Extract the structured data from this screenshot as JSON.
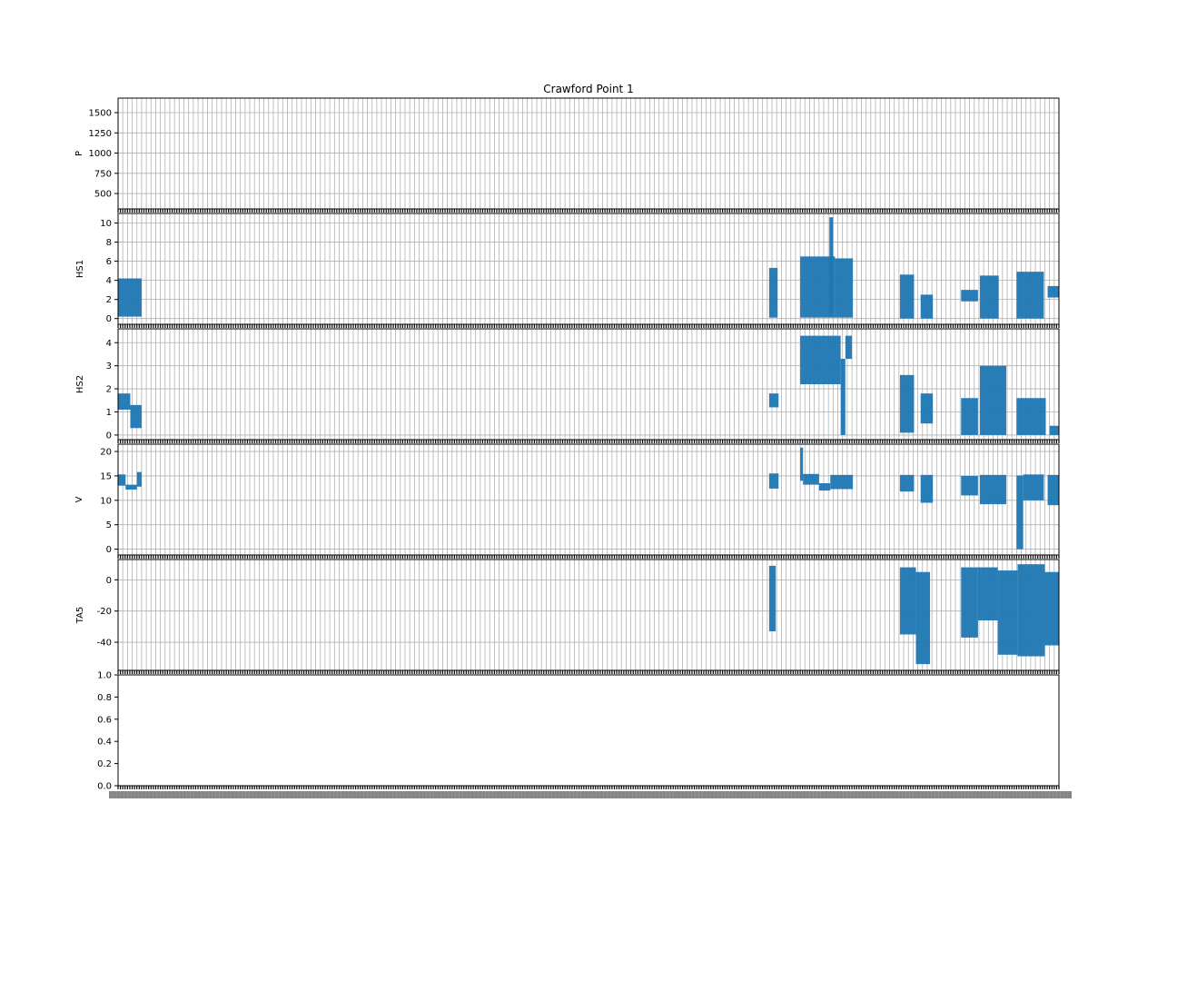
{
  "figure": {
    "title": "Crawford Point 1"
  },
  "chart_data": [
    {
      "type": "line",
      "ylabel": "P",
      "yticks": [
        500,
        750,
        1000,
        1250,
        1500
      ],
      "ylim": [
        310,
        1680
      ],
      "grid": true,
      "series": [
        {
          "color": "#1f77b4",
          "segments": []
        }
      ]
    },
    {
      "type": "line",
      "ylabel": "HS1",
      "yticks": [
        0,
        2,
        4,
        6,
        8,
        10
      ],
      "ylim": [
        -0.6,
        11.0
      ],
      "grid": true,
      "series": [
        {
          "color": "#1f77b4",
          "segments": [
            {
              "x": [
                0.0,
                0.025
              ],
              "low": 0.2,
              "high": 4.2
            },
            {
              "x": [
                0.692,
                0.701
              ],
              "low": 0.1,
              "high": 5.3
            },
            {
              "x": [
                0.725,
                0.762
              ],
              "low": 0.1,
              "high": 6.5
            },
            {
              "x": [
                0.756,
                0.76
              ],
              "low": 0.2,
              "high": 10.6
            },
            {
              "x": [
                0.762,
                0.781
              ],
              "low": 0.1,
              "high": 6.3
            },
            {
              "x": [
                0.831,
                0.846
              ],
              "low": 0.0,
              "high": 4.6
            },
            {
              "x": [
                0.853,
                0.866
              ],
              "low": 0.0,
              "high": 2.5
            },
            {
              "x": [
                0.896,
                0.914
              ],
              "low": 1.8,
              "high": 3.0
            },
            {
              "x": [
                0.916,
                0.936
              ],
              "low": 0.0,
              "high": 4.5
            },
            {
              "x": [
                0.955,
                0.984
              ],
              "low": 0.0,
              "high": 4.9
            },
            {
              "x": [
                0.988,
                1.0
              ],
              "low": 2.2,
              "high": 3.4
            }
          ]
        }
      ]
    },
    {
      "type": "line",
      "ylabel": "HS2",
      "yticks": [
        0,
        1,
        2,
        3,
        4
      ],
      "ylim": [
        -0.2,
        4.6
      ],
      "grid": true,
      "series": [
        {
          "color": "#1f77b4",
          "segments": [
            {
              "x": [
                0.0,
                0.013
              ],
              "low": 1.1,
              "high": 1.8
            },
            {
              "x": [
                0.013,
                0.025
              ],
              "low": 0.3,
              "high": 1.3
            },
            {
              "x": [
                0.692,
                0.702
              ],
              "low": 1.2,
              "high": 1.8
            },
            {
              "x": [
                0.725,
                0.768
              ],
              "low": 2.2,
              "high": 4.3
            },
            {
              "x": [
                0.768,
                0.773
              ],
              "low": 0.0,
              "high": 3.3
            },
            {
              "x": [
                0.773,
                0.78
              ],
              "low": 3.3,
              "high": 4.3
            },
            {
              "x": [
                0.831,
                0.846
              ],
              "low": 0.1,
              "high": 2.6
            },
            {
              "x": [
                0.853,
                0.866
              ],
              "low": 0.5,
              "high": 1.8
            },
            {
              "x": [
                0.896,
                0.914
              ],
              "low": 0.0,
              "high": 1.6
            },
            {
              "x": [
                0.916,
                0.944
              ],
              "low": 0.0,
              "high": 3.0
            },
            {
              "x": [
                0.955,
                0.986
              ],
              "low": 0.0,
              "high": 1.6
            },
            {
              "x": [
                0.99,
                1.0
              ],
              "low": 0.0,
              "high": 0.4
            }
          ]
        }
      ]
    },
    {
      "type": "line",
      "ylabel": "V",
      "yticks": [
        0,
        5,
        10,
        15,
        20
      ],
      "ylim": [
        -1.2,
        21.5
      ],
      "grid": true,
      "series": [
        {
          "color": "#1f77b4",
          "segments": [
            {
              "x": [
                0.0,
                0.008
              ],
              "low": 13.0,
              "high": 15.3
            },
            {
              "x": [
                0.008,
                0.02
              ],
              "low": 12.2,
              "high": 13.2
            },
            {
              "x": [
                0.02,
                0.025
              ],
              "low": 12.8,
              "high": 15.8
            },
            {
              "x": [
                0.692,
                0.702
              ],
              "low": 12.4,
              "high": 15.5
            },
            {
              "x": [
                0.725,
                0.728
              ],
              "low": 14.0,
              "high": 20.8
            },
            {
              "x": [
                0.728,
                0.745
              ],
              "low": 13.2,
              "high": 15.4
            },
            {
              "x": [
                0.745,
                0.757
              ],
              "low": 12.0,
              "high": 13.5
            },
            {
              "x": [
                0.757,
                0.781
              ],
              "low": 12.3,
              "high": 15.2
            },
            {
              "x": [
                0.831,
                0.846
              ],
              "low": 11.8,
              "high": 15.2
            },
            {
              "x": [
                0.853,
                0.866
              ],
              "low": 9.5,
              "high": 15.2
            },
            {
              "x": [
                0.896,
                0.914
              ],
              "low": 11.0,
              "high": 15.0
            },
            {
              "x": [
                0.916,
                0.944
              ],
              "low": 9.2,
              "high": 15.2
            },
            {
              "x": [
                0.955,
                0.962
              ],
              "low": 0.0,
              "high": 15.1
            },
            {
              "x": [
                0.962,
                0.984
              ],
              "low": 10.0,
              "high": 15.3
            },
            {
              "x": [
                0.988,
                1.0
              ],
              "low": 9.0,
              "high": 15.2
            }
          ]
        }
      ]
    },
    {
      "type": "line",
      "ylabel": "TA5",
      "yticks": [
        -40,
        -20,
        0
      ],
      "ylim": [
        -58,
        13
      ],
      "grid": true,
      "series": [
        {
          "color": "#1f77b4",
          "segments": [
            {
              "x": [
                0.692,
                0.699
              ],
              "low": -33,
              "high": 9
            },
            {
              "x": [
                0.831,
                0.848
              ],
              "low": -35,
              "high": 8
            },
            {
              "x": [
                0.848,
                0.863
              ],
              "low": -54,
              "high": 5
            },
            {
              "x": [
                0.896,
                0.914
              ],
              "low": -37,
              "high": 8
            },
            {
              "x": [
                0.914,
                0.935
              ],
              "low": -26,
              "high": 8
            },
            {
              "x": [
                0.935,
                0.956
              ],
              "low": -48,
              "high": 6
            },
            {
              "x": [
                0.956,
                0.985
              ],
              "low": -49,
              "high": 10
            },
            {
              "x": [
                0.985,
                1.0
              ],
              "low": -42,
              "high": 5
            }
          ]
        }
      ]
    },
    {
      "type": "line",
      "ylabel": "",
      "yticks": [
        "0.0",
        "0.2",
        "0.4",
        "0.6",
        "0.8",
        "1.0"
      ],
      "ylim": [
        0,
        1
      ],
      "grid": false,
      "series": []
    }
  ]
}
